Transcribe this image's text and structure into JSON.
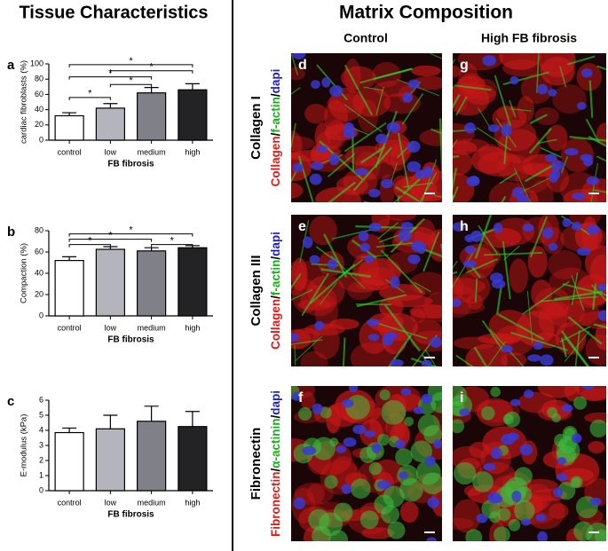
{
  "left_title": "Tissue Characteristics",
  "right_title": "Matrix Composition",
  "chart_data": [
    {
      "type": "bar",
      "panel": "a",
      "ylabel": "cardiac fibroblasts (%)",
      "xlabel": "FB fibrosis",
      "categories": [
        "control",
        "low",
        "medium",
        "high"
      ],
      "values": [
        32,
        42,
        62,
        66
      ],
      "errors": [
        4,
        6,
        7,
        8
      ],
      "colors": [
        "#ffffff",
        "#b4b4bc",
        "#808088",
        "#232326"
      ],
      "ylim": [
        0,
        100
      ],
      "yticks": [
        0,
        20,
        40,
        60,
        80,
        100
      ],
      "significance": [
        {
          "from": 0,
          "to": 1,
          "y": 56,
          "label": "*"
        },
        {
          "from": 1,
          "to": 2,
          "y": 73,
          "label": "*"
        },
        {
          "from": 0,
          "to": 2,
          "y": 83,
          "label": "*"
        },
        {
          "from": 1,
          "to": 3,
          "y": 91,
          "label": "*"
        },
        {
          "from": 0,
          "to": 3,
          "y": 99,
          "label": "*"
        }
      ]
    },
    {
      "type": "bar",
      "panel": "b",
      "ylabel": "Compaction (%)",
      "xlabel": "FB fibrosis",
      "categories": [
        "control",
        "low",
        "medium",
        "high"
      ],
      "values": [
        52,
        62.5,
        61,
        64
      ],
      "errors": [
        3.5,
        2.5,
        3,
        2
      ],
      "colors": [
        "#ffffff",
        "#b4b4bc",
        "#808088",
        "#232326"
      ],
      "ylim": [
        0,
        80
      ],
      "yticks": [
        0,
        20,
        40,
        60,
        80
      ],
      "significance": [
        {
          "from": 0,
          "to": 1,
          "y": 67,
          "label": "*"
        },
        {
          "from": 0,
          "to": 2,
          "y": 72,
          "label": "*"
        },
        {
          "from": 2,
          "to": 3,
          "y": 67,
          "label": "*"
        },
        {
          "from": 0,
          "to": 3,
          "y": 77,
          "label": "*"
        }
      ]
    },
    {
      "type": "bar",
      "panel": "c",
      "ylabel": "E-modulus (kPa)",
      "xlabel": "FB fibrosis",
      "categories": [
        "control",
        "low",
        "medium",
        "high"
      ],
      "values": [
        3.85,
        4.1,
        4.6,
        4.25
      ],
      "errors": [
        0.3,
        0.9,
        1.0,
        1.0
      ],
      "colors": [
        "#ffffff",
        "#b4b4bc",
        "#808088",
        "#232326"
      ],
      "ylim": [
        0,
        6
      ],
      "yticks": [
        0,
        1,
        2,
        3,
        4,
        5,
        6
      ],
      "significance": []
    }
  ],
  "columns": [
    "Control",
    "High FB fibrosis"
  ],
  "rows": [
    {
      "name": "Collagen I",
      "panels": [
        "d",
        "g"
      ],
      "stain": [
        {
          "text": "Collagen",
          "color": "#e01818"
        },
        {
          "text": "/",
          "color": "#000000"
        },
        {
          "text": "f-actin",
          "color": "#18b018"
        },
        {
          "text": "/",
          "color": "#000000"
        },
        {
          "text": "dapi",
          "color": "#2020c8"
        }
      ]
    },
    {
      "name": "Collagen III",
      "panels": [
        "e",
        "h"
      ],
      "stain": [
        {
          "text": "Collagen",
          "color": "#e01818"
        },
        {
          "text": "/",
          "color": "#000000"
        },
        {
          "text": "f-actin",
          "color": "#18b018"
        },
        {
          "text": "/",
          "color": "#000000"
        },
        {
          "text": "dapi",
          "color": "#2020c8"
        }
      ]
    },
    {
      "name": "Fibronectin",
      "panels": [
        "f",
        "i"
      ],
      "stain": [
        {
          "text": "Fibronectin",
          "color": "#e01818"
        },
        {
          "text": "/",
          "color": "#000000"
        },
        {
          "text": "α-actinin",
          "color": "#18b018"
        },
        {
          "text": "/",
          "color": "#000000"
        },
        {
          "text": "dapi",
          "color": "#2020c8"
        }
      ]
    }
  ]
}
